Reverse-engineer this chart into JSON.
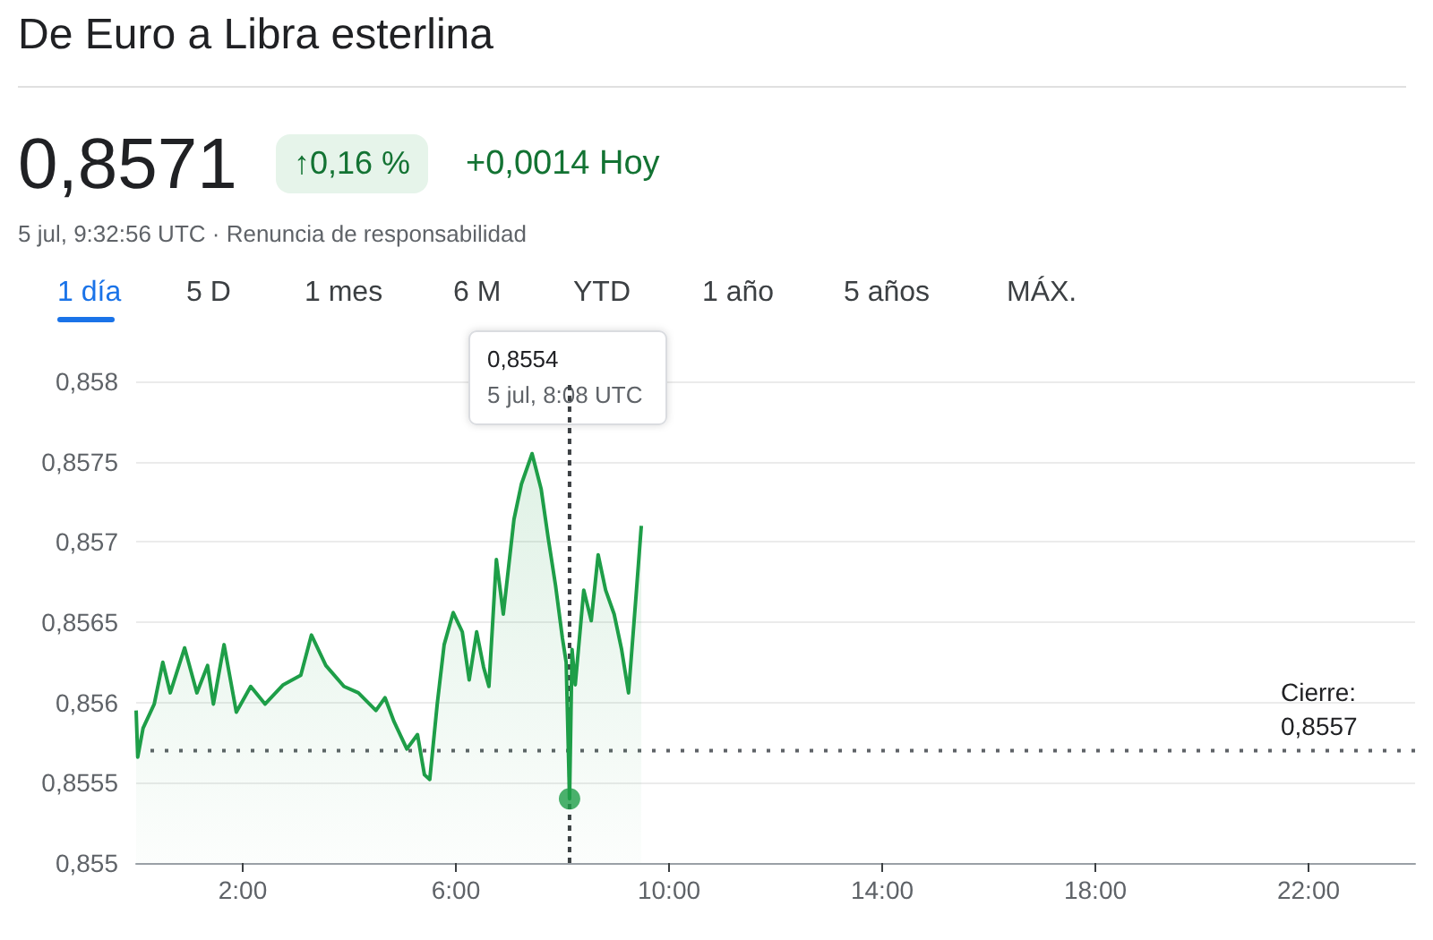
{
  "chart_data": {
    "type": "area",
    "title": "De Euro a Libra esterlina",
    "annotations": [
      "0,8571",
      "↑0,16 %",
      "+0,0014 Hoy",
      "5 jul, 9:32:56 UTC · Renuncia de responsabilidad",
      "1 día",
      "5 D",
      "1 mes",
      "6 M",
      "YTD",
      "1 año",
      "5 años",
      "MÁX.",
      "0,8554\n5 jul, 8:08 UTC"
    ],
    "series": [
      {
        "color": "#1e9e48",
        "x": [
          0,
          0.03,
          0.13,
          0.34,
          0.5,
          0.64,
          0.91,
          1.14,
          1.34,
          1.45,
          1.65,
          1.88,
          2.15,
          2.42,
          2.76,
          3.09,
          3.29,
          3.56,
          3.9,
          4.17,
          4.5,
          4.67,
          4.84,
          5.08,
          5.28,
          5.41,
          5.51,
          5.65,
          5.78,
          5.95,
          6.12,
          6.25,
          6.39,
          6.52,
          6.62,
          6.76,
          6.89,
          7.09,
          7.23,
          7.43,
          7.6,
          7.73,
          7.87,
          8.0,
          8.07,
          8.1333,
          8.18,
          8.24,
          8.4,
          8.54,
          8.67,
          8.81,
          8.97,
          9.11,
          9.24,
          9.38,
          9.48
        ],
        "values": [
          0.85595,
          0.85566,
          0.85584,
          0.85599,
          0.85625,
          0.85606,
          0.85634,
          0.85606,
          0.85623,
          0.85599,
          0.85636,
          0.85594,
          0.8561,
          0.85599,
          0.85611,
          0.85617,
          0.85642,
          0.85623,
          0.8561,
          0.85606,
          0.85595,
          0.85603,
          0.85588,
          0.85571,
          0.8558,
          0.85555,
          0.85552,
          0.85599,
          0.85636,
          0.85656,
          0.85644,
          0.85614,
          0.85644,
          0.85622,
          0.8561,
          0.85689,
          0.85655,
          0.85714,
          0.85736,
          0.85755,
          0.85733,
          0.85703,
          0.85673,
          0.8564,
          0.85625,
          0.8554,
          0.85633,
          0.85611,
          0.8567,
          0.85651,
          0.85692,
          0.8567,
          0.85655,
          0.85633,
          0.85606,
          0.85666,
          0.8571
        ]
      },
      {
        "type": "scatter",
        "marker": "circle",
        "color": "#1e9e48",
        "x": [
          8.1333
        ],
        "values": [
          0.8554
        ]
      }
    ],
    "xlim": [
      0,
      24
    ],
    "xticks": [
      {
        "value": 2,
        "label": "2:00"
      },
      {
        "value": 6,
        "label": "6:00"
      },
      {
        "value": 10,
        "label": "10:00"
      },
      {
        "value": 14,
        "label": "14:00"
      },
      {
        "value": 18,
        "label": "18:00"
      },
      {
        "value": 22,
        "label": "22:00"
      }
    ],
    "ylim": [
      0.855,
      0.858
    ],
    "yticks": [
      {
        "value": 0.855,
        "label": "0,855"
      },
      {
        "value": 0.8555,
        "label": "0,8555"
      },
      {
        "value": 0.856,
        "label": "0,856"
      },
      {
        "value": 0.8565,
        "label": "0,8565"
      },
      {
        "value": 0.857,
        "label": "0,857"
      },
      {
        "value": 0.8575,
        "label": "0,8575"
      },
      {
        "value": 0.858,
        "label": "0,858"
      }
    ],
    "ref_lines": [
      {
        "axis": "y",
        "value": 0.8557,
        "label": "Cierre:\n0,8557",
        "color": "#5f6368",
        "line_style": "dotted"
      },
      {
        "axis": "x",
        "value": 8.1333,
        "label": null,
        "color": "#3c4043",
        "line_style": "dashed"
      }
    ],
    "grid": "y",
    "line_style": "solid"
  }
}
